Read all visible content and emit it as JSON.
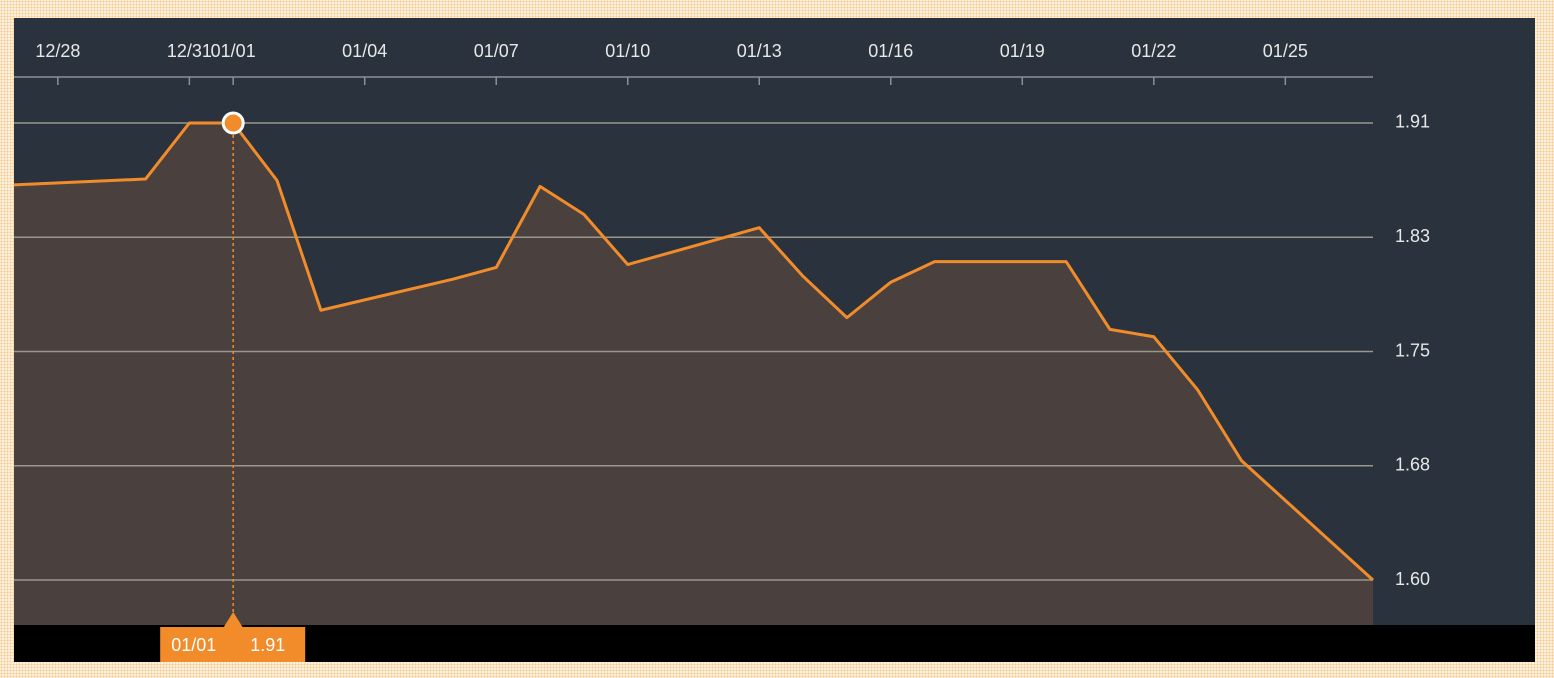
{
  "chart_data": {
    "type": "area",
    "x": [
      "12/27",
      "12/30",
      "12/31",
      "01/01",
      "01/02",
      "01/03",
      "01/06",
      "01/07",
      "01/08",
      "01/09",
      "01/10",
      "01/13",
      "01/14",
      "01/15",
      "01/16",
      "01/17",
      "01/20",
      "01/21",
      "01/22",
      "01/23",
      "01/24",
      "01/27"
    ],
    "values": [
      1.868,
      1.872,
      1.91,
      1.91,
      1.871,
      1.783,
      1.804,
      1.812,
      1.867,
      1.848,
      1.814,
      1.839,
      1.806,
      1.778,
      1.802,
      1.816,
      1.816,
      1.77,
      1.765,
      1.729,
      1.681,
      1.6
    ],
    "color": "#f28c2a",
    "xlim": [
      "12/27",
      "01/27"
    ],
    "xticks": [
      "12/28",
      "12/31",
      "01/01",
      "01/04",
      "01/07",
      "01/10",
      "01/13",
      "01/16",
      "01/19",
      "01/22",
      "01/25"
    ],
    "ylim": [
      1.5695,
      1.9412
    ],
    "yticks": [
      {
        "value": 1.6,
        "label": "1.60"
      },
      {
        "value": 1.6775,
        "label": "1.68"
      },
      {
        "value": 1.755,
        "label": "1.75"
      },
      {
        "value": 1.8325,
        "label": "1.83"
      },
      1.91
    ],
    "grid": true,
    "highlight": {
      "x": "01/01",
      "value": 1.91
    }
  }
}
